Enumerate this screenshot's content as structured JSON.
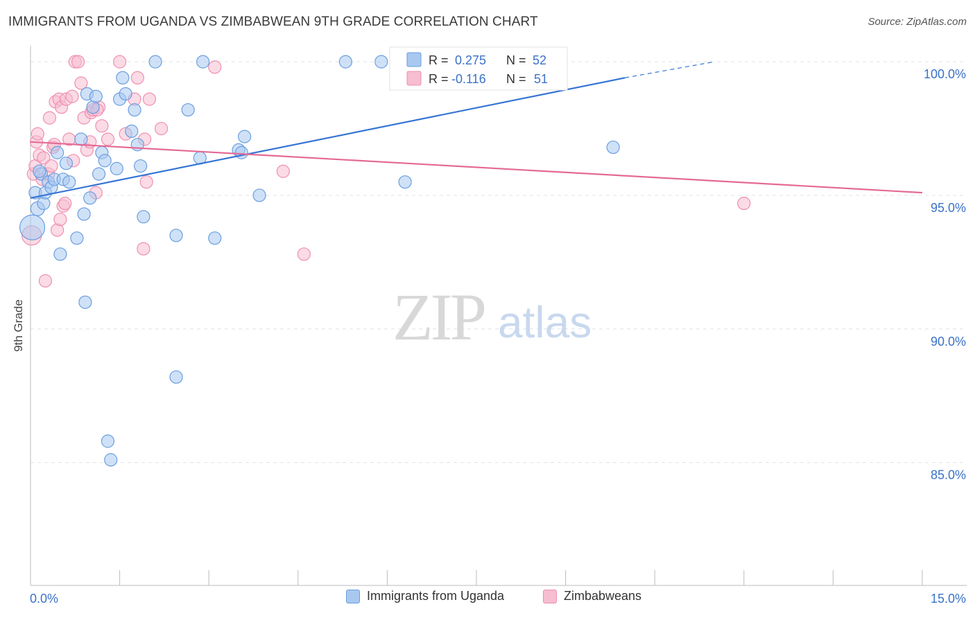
{
  "title": "IMMIGRANTS FROM UGANDA VS ZIMBABWEAN 9TH GRADE CORRELATION CHART",
  "source": "Source: ZipAtlas.com",
  "watermark": {
    "zip": "ZIP",
    "atlas": "atlas"
  },
  "legend_top": [
    {
      "r_label": "R =",
      "r_value": "0.275",
      "n_label": "N =",
      "n_value": "52"
    },
    {
      "r_label": "R =",
      "r_value": "-0.116",
      "n_label": "N =",
      "n_value": "51"
    }
  ],
  "legend_bottom": [
    "Immigrants from Uganda",
    "Zimbabweans"
  ],
  "colors": {
    "blue_fill": "#a8c8f0",
    "blue_stroke": "#6a9ee0",
    "blue_line": "#3574d4",
    "pink_fill": "#f7bdd0",
    "pink_stroke": "#ee8fb0",
    "pink_line": "#e46a95",
    "value_text": "#3a72c8",
    "grid": "#dde3ea"
  },
  "chart_data": {
    "type": "scatter",
    "title": "IMMIGRANTS FROM UGANDA VS ZIMBABWEAN 9TH GRADE CORRELATION CHART",
    "xlabel": "",
    "ylabel": "9th Grade",
    "xlim": [
      0,
      15
    ],
    "ylim": [
      80.4,
      100.6
    ],
    "x_tick_labels": [
      {
        "value": 0,
        "label": "0.0%"
      },
      {
        "value": 15,
        "label": "15.0%"
      }
    ],
    "y_tick_labels": [
      {
        "value": 100,
        "label": "100.0%"
      },
      {
        "value": 95,
        "label": "95.0%"
      },
      {
        "value": 90,
        "label": "90.0%"
      },
      {
        "value": 85,
        "label": "85.0%"
      }
    ],
    "series": [
      {
        "name": "Immigrants from Uganda",
        "r": 0.275,
        "n": 52,
        "trend": {
          "x0": 0.0,
          "y0": 94.9,
          "x1": 10.0,
          "y1": 99.4,
          "dash_to_x": 11.5,
          "dash_to_y": 100.0
        },
        "points": [
          [
            0.03,
            93.8,
            18
          ],
          [
            0.08,
            95.1,
            9
          ],
          [
            0.12,
            94.5,
            10
          ],
          [
            0.18,
            95.8,
            9
          ],
          [
            0.22,
            94.7,
            9
          ],
          [
            0.25,
            95.1,
            9
          ],
          [
            0.3,
            95.5,
            9
          ],
          [
            0.35,
            95.3,
            9
          ],
          [
            0.4,
            95.6,
            9
          ],
          [
            0.45,
            96.6,
            9
          ],
          [
            0.5,
            92.8,
            9
          ],
          [
            0.55,
            95.6,
            9
          ],
          [
            0.6,
            96.2,
            9
          ],
          [
            0.65,
            95.5,
            9
          ],
          [
            0.78,
            93.4,
            9
          ],
          [
            0.85,
            97.1,
            9
          ],
          [
            0.9,
            94.3,
            9
          ],
          [
            0.92,
            91.0,
            9
          ],
          [
            0.95,
            98.8,
            9
          ],
          [
            1.0,
            94.9,
            9
          ],
          [
            1.05,
            98.3,
            9
          ],
          [
            1.1,
            98.7,
            9
          ],
          [
            1.15,
            95.8,
            9
          ],
          [
            1.2,
            96.6,
            9
          ],
          [
            1.25,
            96.3,
            9
          ],
          [
            1.3,
            85.8,
            9
          ],
          [
            1.35,
            85.1,
            9
          ],
          [
            1.45,
            96.0,
            9
          ],
          [
            1.5,
            98.6,
            9
          ],
          [
            1.55,
            99.4,
            9
          ],
          [
            1.6,
            98.8,
            9
          ],
          [
            1.7,
            97.4,
            9
          ],
          [
            1.75,
            98.2,
            9
          ],
          [
            1.8,
            96.9,
            9
          ],
          [
            1.85,
            96.1,
            9
          ],
          [
            1.9,
            94.2,
            9
          ],
          [
            2.1,
            100.0,
            9
          ],
          [
            2.45,
            93.5,
            9
          ],
          [
            2.45,
            88.2,
            9
          ],
          [
            2.65,
            98.2,
            9
          ],
          [
            2.85,
            96.4,
            9
          ],
          [
            2.9,
            100.0,
            9
          ],
          [
            3.1,
            93.4,
            9
          ],
          [
            3.5,
            96.7,
            9
          ],
          [
            3.55,
            96.6,
            9
          ],
          [
            3.6,
            97.2,
            9
          ],
          [
            3.85,
            95.0,
            9
          ],
          [
            5.3,
            100.0,
            9
          ],
          [
            5.9,
            100.0,
            9
          ],
          [
            6.3,
            95.5,
            9
          ],
          [
            9.8,
            96.8,
            9
          ],
          [
            0.15,
            95.9,
            9
          ]
        ]
      },
      {
        "name": "Zimbabweans",
        "r": -0.116,
        "n": 51,
        "trend": {
          "x0": 0.0,
          "y0": 97.0,
          "x1": 15.0,
          "y1": 95.1
        },
        "points": [
          [
            0.02,
            93.5,
            14
          ],
          [
            0.05,
            95.8,
            9
          ],
          [
            0.08,
            96.1,
            9
          ],
          [
            0.1,
            97.0,
            9
          ],
          [
            0.12,
            97.3,
            9
          ],
          [
            0.15,
            96.5,
            9
          ],
          [
            0.2,
            95.6,
            9
          ],
          [
            0.22,
            96.4,
            9
          ],
          [
            0.25,
            91.8,
            9
          ],
          [
            0.3,
            95.8,
            9
          ],
          [
            0.32,
            97.9,
            9
          ],
          [
            0.35,
            96.1,
            9
          ],
          [
            0.38,
            96.8,
            9
          ],
          [
            0.4,
            96.9,
            9
          ],
          [
            0.42,
            98.5,
            9
          ],
          [
            0.45,
            93.7,
            9
          ],
          [
            0.48,
            98.6,
            9
          ],
          [
            0.5,
            94.1,
            9
          ],
          [
            0.52,
            98.3,
            9
          ],
          [
            0.55,
            94.6,
            9
          ],
          [
            0.6,
            98.6,
            9
          ],
          [
            0.65,
            97.1,
            9
          ],
          [
            0.7,
            98.7,
            9
          ],
          [
            0.72,
            96.3,
            9
          ],
          [
            0.75,
            100.0,
            9
          ],
          [
            0.8,
            100.0,
            9
          ],
          [
            0.85,
            99.2,
            9
          ],
          [
            0.9,
            97.9,
            9
          ],
          [
            0.95,
            96.7,
            9
          ],
          [
            1.0,
            97.0,
            9
          ],
          [
            1.02,
            98.1,
            9
          ],
          [
            1.05,
            98.2,
            9
          ],
          [
            1.1,
            95.1,
            9
          ],
          [
            1.15,
            98.3,
            9
          ],
          [
            1.2,
            97.6,
            9
          ],
          [
            1.3,
            97.1,
            9
          ],
          [
            1.5,
            100.0,
            9
          ],
          [
            1.6,
            97.3,
            9
          ],
          [
            1.75,
            98.6,
            9
          ],
          [
            1.8,
            99.4,
            9
          ],
          [
            1.9,
            93.0,
            9
          ],
          [
            1.92,
            97.1,
            9
          ],
          [
            1.95,
            95.5,
            9
          ],
          [
            2.0,
            98.6,
            9
          ],
          [
            2.2,
            97.5,
            9
          ],
          [
            3.1,
            99.8,
            9
          ],
          [
            4.25,
            95.9,
            9
          ],
          [
            4.6,
            92.8,
            9
          ],
          [
            12.0,
            94.7,
            9
          ],
          [
            0.58,
            94.7,
            9
          ],
          [
            1.12,
            98.2,
            9
          ]
        ]
      }
    ]
  }
}
